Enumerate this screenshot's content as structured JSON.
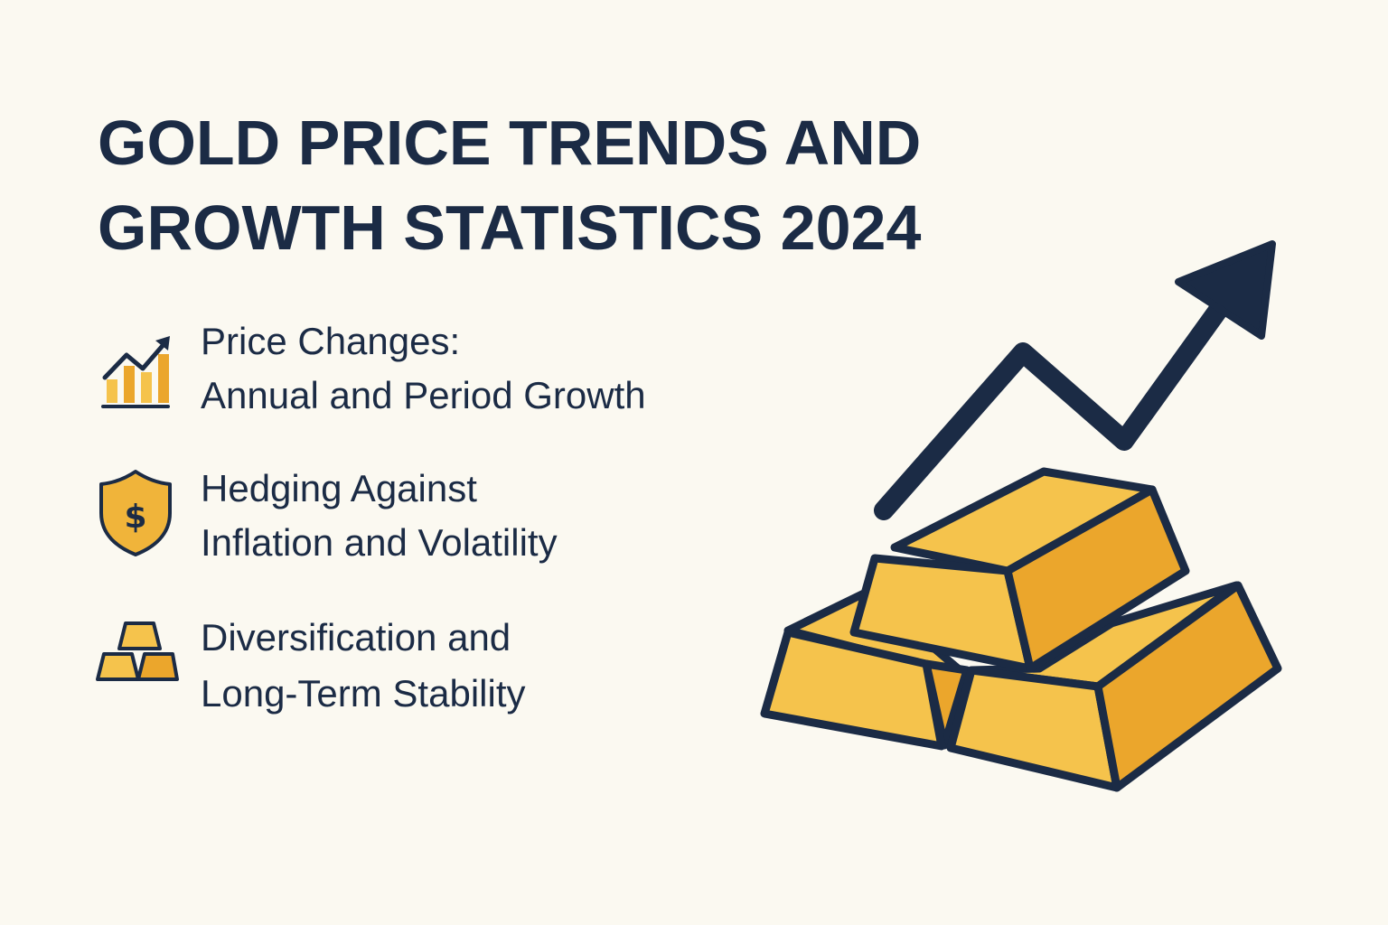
{
  "title_lines": [
    "GOLD PRICE TRENDS AND",
    "GROWTH STATISTICS 2024"
  ],
  "items": [
    {
      "lines": [
        "Price Changes:",
        "Annual and Period Growth"
      ]
    },
    {
      "lines": [
        "Hedging Against",
        "Inflation and Volatility"
      ],
      "icon_text": "$"
    },
    {
      "lines": [
        "Diversification and",
        "Long-Term Stability"
      ]
    }
  ]
}
